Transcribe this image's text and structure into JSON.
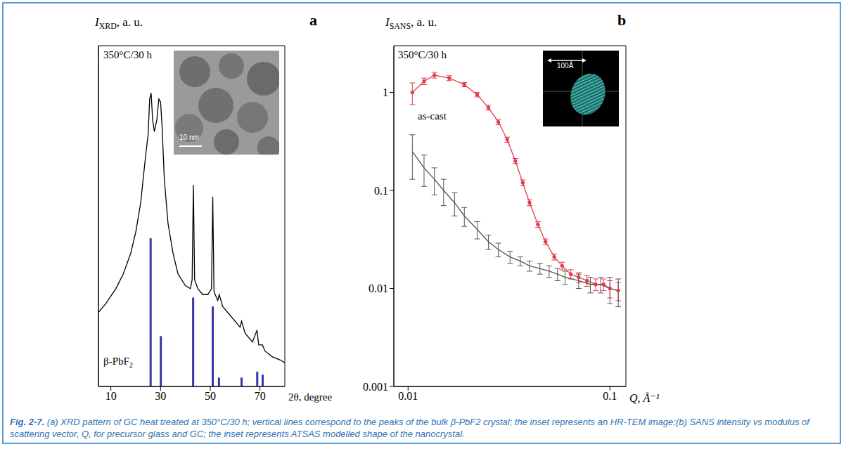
{
  "caption": {
    "label": "Fig. 2-7.",
    "text": "(a) XRD pattern of GC heat treated at 350°C/30 h; vertical lines correspond to the peaks of the bulk β-PbF2 crystal; the inset represents an HR-TEM image;(b) SANS intensity vs modulus of scattering vector, Q, for precursor glass and GC; the inset represents ATSAS modelled shape of the nanocrystal."
  },
  "chart_data": [
    {
      "type": "line",
      "title": "a",
      "y_label": {
        "main": "I",
        "sub": "XRD",
        "rest": ", a. u."
      },
      "x_label": "2θ, degree",
      "annotations": [
        "350°C/30 h"
      ],
      "x": [
        5,
        8,
        12,
        15,
        18,
        20,
        22,
        24,
        25,
        25.6,
        26.2,
        26.8,
        27.5,
        28.5,
        29.3,
        30,
        30.6,
        31.5,
        33,
        35,
        37,
        40,
        42,
        42.7,
        43.2,
        43.7,
        45,
        47,
        49,
        50.5,
        51,
        51.5,
        53,
        53.6,
        55,
        58,
        62,
        62.6,
        64,
        67,
        68.8,
        69.5,
        71,
        72,
        75,
        78,
        80
      ],
      "values": [
        0.25,
        0.28,
        0.33,
        0.38,
        0.45,
        0.52,
        0.62,
        0.78,
        0.85,
        0.97,
        0.99,
        0.9,
        0.86,
        0.9,
        0.97,
        0.96,
        0.88,
        0.7,
        0.55,
        0.45,
        0.38,
        0.34,
        0.33,
        0.36,
        0.68,
        0.36,
        0.33,
        0.31,
        0.31,
        0.33,
        0.64,
        0.32,
        0.29,
        0.31,
        0.27,
        0.24,
        0.2,
        0.22,
        0.18,
        0.15,
        0.19,
        0.14,
        0.14,
        0.12,
        0.1,
        0.09,
        0.08
      ],
      "color": "#000000",
      "xlim": [
        5,
        80
      ],
      "xticks": [
        10,
        30,
        50,
        70
      ],
      "ylim": [
        0,
        1.15
      ],
      "tick_labels": "x",
      "reference_peaks": {
        "label": {
          "main": "β-PbF",
          "sub": "2"
        },
        "x": [
          26.0,
          30.1,
          43.1,
          51.0,
          53.5,
          62.6,
          68.9,
          71.1
        ],
        "values": [
          0.5,
          0.17,
          0.3,
          0.27,
          0.03,
          0.03,
          0.05,
          0.04
        ],
        "color": "#3535a8"
      },
      "inset": {
        "scale_bar": "10 nm"
      }
    },
    {
      "type": "line",
      "title": "b",
      "y_label": {
        "main": "I",
        "sub": "SANS",
        "rest": ", a. u."
      },
      "x_label": "Q, Å⁻¹",
      "log": true,
      "xlim": [
        0.0085,
        0.12
      ],
      "xticks": [
        0.01,
        0.1
      ],
      "ylim": [
        0.001,
        3
      ],
      "yticks": [
        0.001,
        0.01,
        0.1,
        1
      ],
      "series": [
        {
          "name": "350°C/30 h",
          "color": "#e03c4c",
          "marker": "circle",
          "x": [
            0.0105,
            0.012,
            0.0135,
            0.016,
            0.019,
            0.022,
            0.025,
            0.028,
            0.031,
            0.034,
            0.037,
            0.04,
            0.044,
            0.048,
            0.053,
            0.058,
            0.064,
            0.07,
            0.077,
            0.085,
            0.093,
            0.1,
            0.11
          ],
          "values": [
            1.0,
            1.3,
            1.5,
            1.4,
            1.2,
            0.95,
            0.7,
            0.5,
            0.33,
            0.2,
            0.12,
            0.075,
            0.045,
            0.03,
            0.021,
            0.017,
            0.014,
            0.013,
            0.012,
            0.011,
            0.011,
            0.01,
            0.0095
          ],
          "errors": [
            0.25,
            0.1,
            0.1,
            0.08,
            0.06,
            0.05,
            0.04,
            0.03,
            0.02,
            0.012,
            0.008,
            0.005,
            0.003,
            0.002,
            0.0015,
            0.0015,
            0.0015,
            0.0015,
            0.0015,
            0.0015,
            0.0015,
            0.002,
            0.002
          ]
        },
        {
          "name": "as-cast",
          "color": "#555555",
          "marker": "none",
          "x": [
            0.0105,
            0.012,
            0.0135,
            0.015,
            0.017,
            0.019,
            0.022,
            0.025,
            0.028,
            0.032,
            0.036,
            0.04,
            0.045,
            0.05,
            0.055,
            0.06,
            0.07,
            0.08,
            0.09,
            0.1,
            0.11
          ],
          "values": [
            0.25,
            0.17,
            0.13,
            0.1,
            0.075,
            0.055,
            0.04,
            0.03,
            0.025,
            0.021,
            0.019,
            0.017,
            0.016,
            0.015,
            0.014,
            0.013,
            0.012,
            0.011,
            0.011,
            0.01,
            0.0095
          ],
          "errors": [
            0.12,
            0.06,
            0.04,
            0.03,
            0.02,
            0.012,
            0.008,
            0.005,
            0.004,
            0.003,
            0.002,
            0.002,
            0.002,
            0.002,
            0.002,
            0.002,
            0.002,
            0.002,
            0.002,
            0.003,
            0.003
          ]
        }
      ],
      "inset": {
        "scale_bar": "100Å"
      }
    }
  ]
}
